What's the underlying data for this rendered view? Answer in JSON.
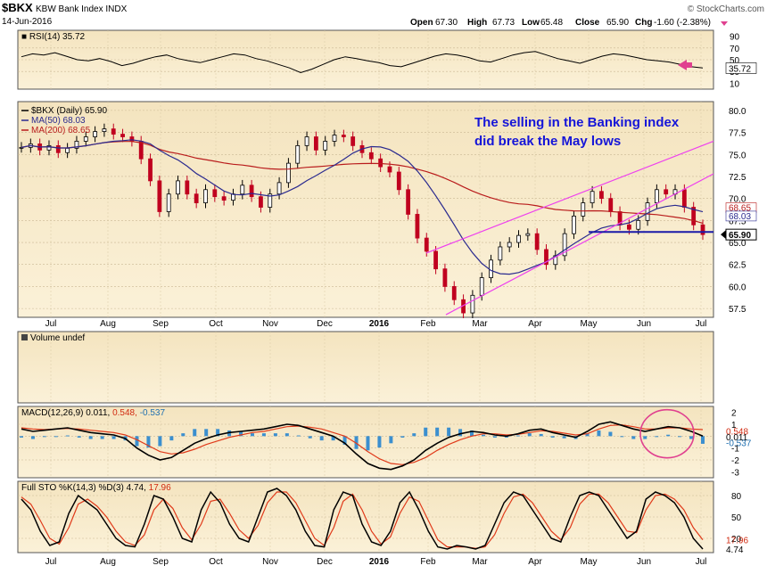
{
  "header": {
    "symbol": "$BKX",
    "name": "KBW Bank Index",
    "exchange": "INDX",
    "date": "14-Jun-2016",
    "watermark": "© StockCharts.com",
    "quote": {
      "open_label": "Open",
      "open": "67.30",
      "high_label": "High",
      "high": "67.73",
      "low_label": "Low",
      "low": "65.48",
      "close_label": "Close",
      "close": "65.90",
      "chg_label": "Chg",
      "chg": "-1.60 (-2.38%)"
    }
  },
  "annotation": {
    "line1": "The selling in the Banking index",
    "line2": "did break the May lows",
    "color": "#1515d8"
  },
  "colors": {
    "panel_bg": "#fbf1d8",
    "panel_top": "#f4e4bf",
    "price": "#000000",
    "ma50": "#2b2b8f",
    "ma200": "#b91c1c",
    "trend": "#ee40ee",
    "support": "#1a1aa8",
    "macd_hist": "#3b8fcf",
    "highlight": "#e0408f",
    "up_candle": "#000000",
    "down_candle": "#c0001f"
  },
  "chart_data": [
    {
      "panel": "rsi",
      "type": "line",
      "title": "RSI(14) 35.72",
      "ylim": [
        0,
        100
      ],
      "y_ticks": [
        "90",
        "70",
        "50",
        "30",
        "10"
      ],
      "last_value_label": "35.72",
      "series": [
        {
          "name": "RSI(14)",
          "values": [
            55,
            60,
            58,
            62,
            56,
            50,
            48,
            52,
            47,
            40,
            44,
            50,
            55,
            58,
            52,
            48,
            45,
            50,
            55,
            60,
            58,
            52,
            48,
            42,
            36,
            28,
            34,
            42,
            50,
            55,
            52,
            48,
            45,
            40,
            38,
            44,
            50,
            56,
            60,
            58,
            54,
            48,
            46,
            52,
            58,
            62,
            64,
            58,
            52,
            48,
            44,
            50,
            56,
            60,
            58,
            54,
            50,
            48,
            46,
            42,
            38,
            36
          ]
        }
      ]
    },
    {
      "panel": "price",
      "type": "candlestick",
      "title": "$BKX (Daily) 65.90",
      "ylim": [
        56.5,
        81.0
      ],
      "y_ticks": [
        "80.0",
        "77.5",
        "75.0",
        "72.5",
        "70.0",
        "67.5",
        "65.0",
        "62.5",
        "60.0",
        "57.5"
      ],
      "x_ticks": [
        "Jul",
        "Aug",
        "Sep",
        "Oct",
        "Nov",
        "Dec",
        "2016",
        "Feb",
        "Mar",
        "Apr",
        "May",
        "Jun",
        "Jul"
      ],
      "legend": [
        {
          "label": "$BKX (Daily) 65.90",
          "color": "#000000"
        },
        {
          "label": "MA(50) 68.03",
          "color": "#2b2b8f"
        },
        {
          "label": "MA(200) 68.65",
          "color": "#b91c1c"
        }
      ],
      "last_price_labels": {
        "close": "65.90",
        "ma200": "68.65",
        "ma50": "68.03"
      },
      "close_series": [
        75.8,
        76.2,
        75.5,
        76.0,
        75.2,
        75.7,
        76.5,
        77.0,
        77.6,
        77.9,
        77.3,
        77.0,
        76.5,
        74.5,
        72.0,
        68.5,
        70.5,
        72.0,
        70.5,
        69.5,
        71.0,
        70.2,
        69.8,
        70.5,
        71.5,
        70.2,
        69.0,
        70.5,
        71.8,
        74.0,
        76.0,
        77.0,
        75.5,
        76.5,
        77.2,
        77.0,
        76.0,
        75.2,
        74.5,
        73.6,
        73.0,
        71.0,
        68.2,
        65.5,
        64.0,
        62.0,
        60.0,
        58.5,
        57.0,
        59.0,
        61.0,
        63.0,
        64.5,
        65.0,
        65.8,
        66.0,
        64.2,
        62.5,
        63.5,
        66.0,
        68.0,
        69.5,
        70.8,
        70.0,
        68.5,
        67.0,
        66.5,
        67.5,
        69.5,
        71.0,
        70.5,
        71.0,
        69.0,
        67.0,
        65.9
      ],
      "support_level": 66.2
    },
    {
      "panel": "volume",
      "type": "bar",
      "title": "Volume undef",
      "values": []
    },
    {
      "panel": "macd",
      "type": "line",
      "title_prefix": "MACD(12,26,9)",
      "values_text": {
        "macd": "0.011",
        "signal": "0.548",
        "hist": "-0.537"
      },
      "ylim": [
        -3.5,
        2.5
      ],
      "y_ticks": [
        "2",
        "1",
        "-1",
        "-2",
        "-3"
      ],
      "side_labels": {
        "signal": "0.548",
        "macd": "0.011",
        "hist": "-0.537"
      },
      "series": [
        {
          "name": "MACD",
          "values": [
            0.6,
            0.4,
            0.5,
            0.6,
            0.7,
            0.5,
            0.3,
            0.2,
            0.1,
            -0.2,
            -1.0,
            -1.6,
            -2.0,
            -1.8,
            -1.2,
            -0.6,
            -0.2,
            0.1,
            0.3,
            0.4,
            0.5,
            0.6,
            0.8,
            1.0,
            0.9,
            0.6,
            0.3,
            0.0,
            -0.6,
            -1.5,
            -2.3,
            -2.7,
            -2.8,
            -2.5,
            -2.0,
            -1.2,
            -0.6,
            -0.1,
            0.2,
            0.4,
            0.3,
            0.1,
            0.0,
            0.2,
            0.5,
            0.6,
            0.3,
            0.1,
            -0.1,
            0.4,
            1.0,
            1.2,
            0.9,
            0.6,
            0.4,
            0.6,
            0.8,
            0.7,
            0.4,
            0.011
          ]
        },
        {
          "name": "Signal",
          "values": [
            0.7,
            0.6,
            0.55,
            0.6,
            0.65,
            0.6,
            0.5,
            0.4,
            0.3,
            0.1,
            -0.3,
            -0.8,
            -1.3,
            -1.5,
            -1.4,
            -1.1,
            -0.7,
            -0.4,
            -0.1,
            0.1,
            0.3,
            0.4,
            0.6,
            0.8,
            0.85,
            0.75,
            0.6,
            0.3,
            0.0,
            -0.6,
            -1.3,
            -1.9,
            -2.3,
            -2.4,
            -2.2,
            -1.8,
            -1.2,
            -0.7,
            -0.3,
            0.0,
            0.2,
            0.2,
            0.1,
            0.15,
            0.3,
            0.45,
            0.4,
            0.25,
            0.1,
            0.2,
            0.6,
            0.9,
            0.95,
            0.8,
            0.6,
            0.6,
            0.7,
            0.7,
            0.6,
            0.548
          ]
        }
      ]
    },
    {
      "panel": "sto",
      "type": "line",
      "title_prefix": "Full STO %K(14,3) %D(3)",
      "values_text": {
        "k": "4.74",
        "d": "17.96"
      },
      "ylim": [
        0,
        100
      ],
      "y_ticks": [
        "80",
        "50",
        "20"
      ],
      "side_labels": {
        "d": "17.96",
        "k": "4.74"
      },
      "series": [
        {
          "name": "%K",
          "values": [
            75,
            60,
            30,
            10,
            15,
            55,
            80,
            70,
            60,
            40,
            20,
            10,
            8,
            40,
            80,
            75,
            50,
            20,
            15,
            60,
            85,
            70,
            40,
            20,
            15,
            50,
            85,
            90,
            80,
            60,
            30,
            10,
            8,
            60,
            85,
            80,
            40,
            15,
            10,
            30,
            70,
            85,
            60,
            30,
            8,
            5,
            10,
            8,
            5,
            10,
            40,
            70,
            85,
            80,
            60,
            40,
            20,
            15,
            50,
            80,
            85,
            80,
            60,
            40,
            20,
            30,
            75,
            85,
            80,
            70,
            50,
            20,
            5
          ]
        },
        {
          "name": "%D",
          "values": [
            78,
            68,
            45,
            20,
            12,
            35,
            68,
            75,
            65,
            50,
            30,
            15,
            10,
            25,
            60,
            75,
            62,
            35,
            18,
            40,
            72,
            75,
            55,
            32,
            20,
            38,
            70,
            85,
            85,
            70,
            45,
            20,
            10,
            35,
            72,
            82,
            60,
            30,
            12,
            22,
            55,
            78,
            72,
            45,
            18,
            8,
            8,
            8,
            6,
            8,
            25,
            55,
            78,
            82,
            70,
            50,
            30,
            18,
            35,
            68,
            82,
            82,
            70,
            50,
            30,
            28,
            60,
            80,
            82,
            75,
            60,
            35,
            17.96
          ]
        }
      ]
    }
  ]
}
